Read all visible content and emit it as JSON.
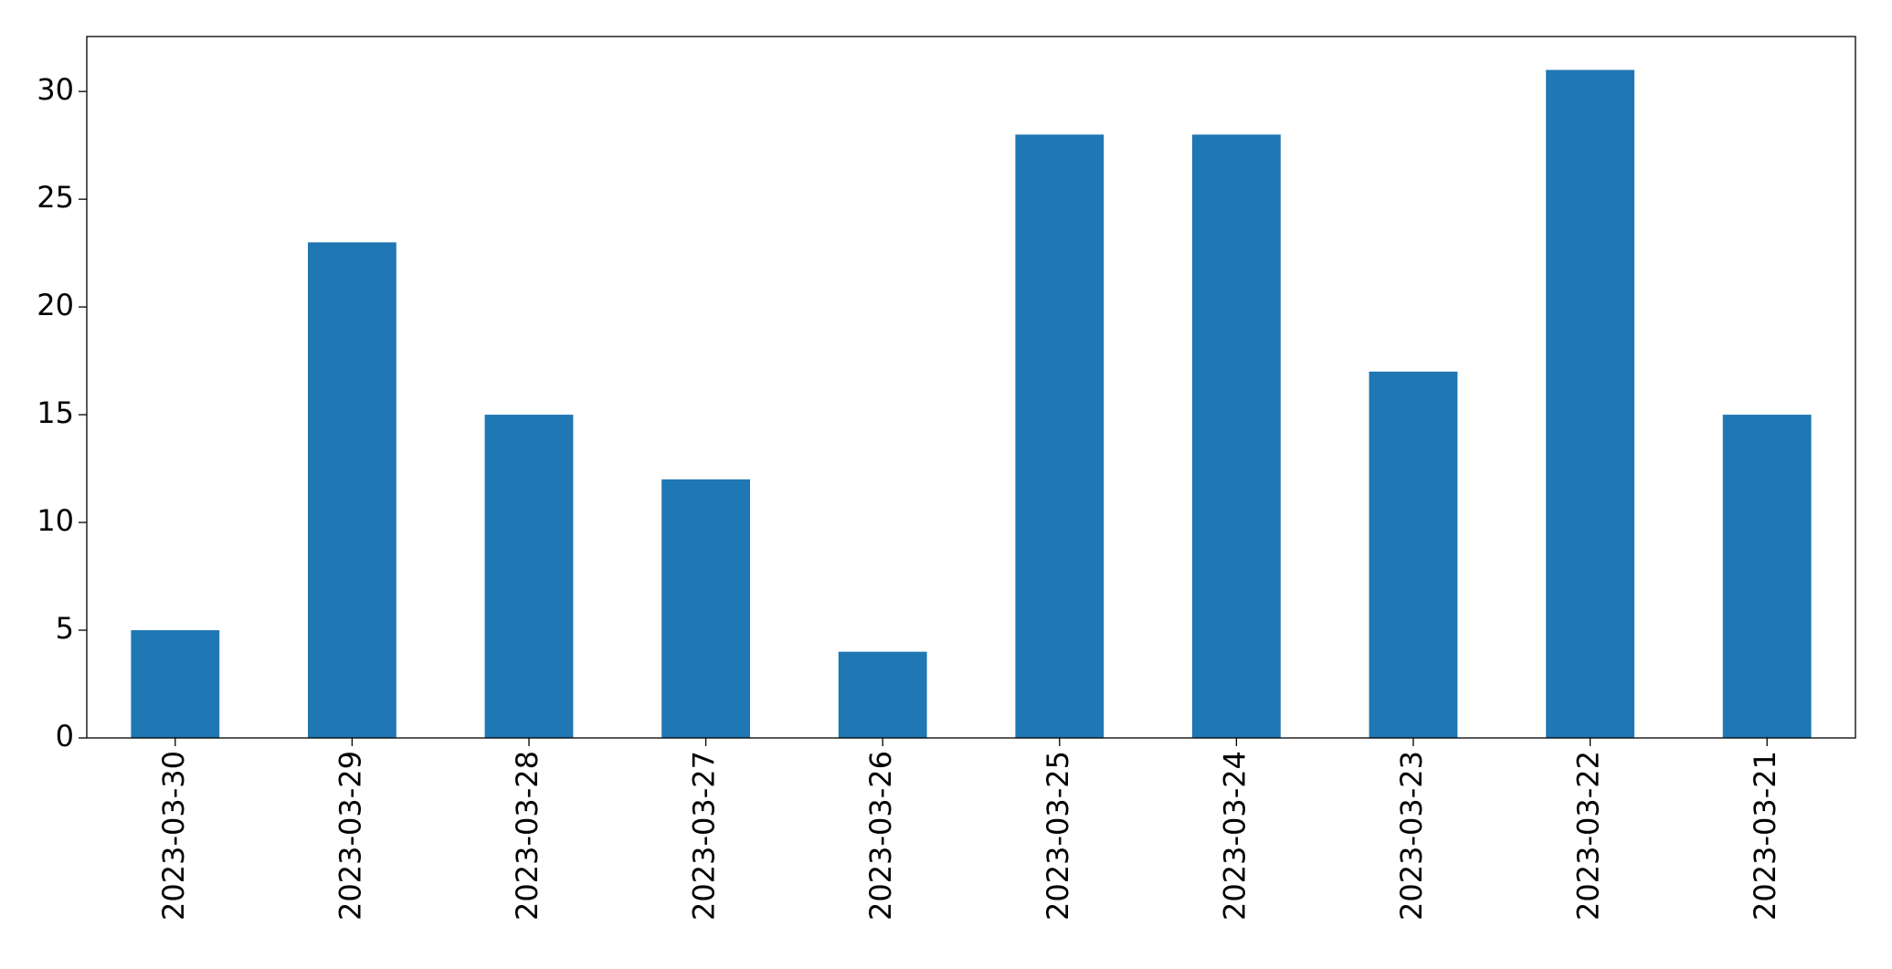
{
  "chart_data": {
    "type": "bar",
    "categories": [
      "2023-03-30",
      "2023-03-29",
      "2023-03-28",
      "2023-03-27",
      "2023-03-26",
      "2023-03-25",
      "2023-03-24",
      "2023-03-23",
      "2023-03-22",
      "2023-03-21"
    ],
    "values": [
      5,
      23,
      15,
      12,
      4,
      28,
      28,
      17,
      31,
      15
    ],
    "color": "#1f77b4",
    "ylim": [
      0,
      32.55
    ],
    "yticks": [
      0,
      5,
      10,
      15,
      20,
      25,
      30
    ],
    "grid": false
  }
}
